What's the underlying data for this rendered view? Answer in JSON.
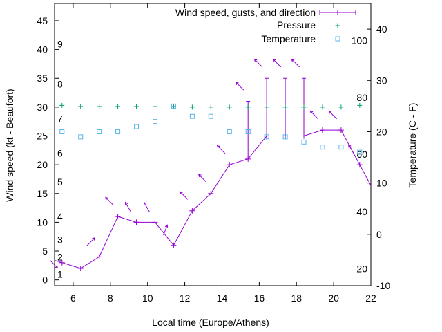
{
  "chart_data": {
    "type": "line",
    "xlabel": "Local time (Europe/Athens)",
    "ylabel": "Wind speed (kt - Beaufort)",
    "y2label": "Temperature (C - F)",
    "xlim": [
      5,
      22
    ],
    "xticks": [
      6,
      8,
      10,
      12,
      14,
      16,
      18,
      20,
      22
    ],
    "ylim": [
      -1,
      48
    ],
    "yticks": [
      0,
      5,
      10,
      15,
      20,
      25,
      30,
      35,
      40,
      45
    ],
    "y2lim": [
      -10,
      45
    ],
    "y2ticks": [
      -10,
      0,
      10,
      20,
      30,
      40
    ],
    "beaufort_labels": [
      {
        "label": "1",
        "kt": 1
      },
      {
        "label": "2",
        "kt": 4
      },
      {
        "label": "3",
        "kt": 7
      },
      {
        "label": "4",
        "kt": 11
      },
      {
        "label": "5",
        "kt": 17
      },
      {
        "label": "6",
        "kt": 22
      },
      {
        "label": "7",
        "kt": 28
      },
      {
        "label": "8",
        "kt": 34
      },
      {
        "label": "9",
        "kt": 41
      }
    ],
    "fahrenheit_labels": [
      {
        "label": "20",
        "c": -6.7
      },
      {
        "label": "40",
        "c": 4.4
      },
      {
        "label": "60",
        "c": 15.6
      },
      {
        "label": "80",
        "c": 26.7
      },
      {
        "label": "100",
        "c": 37.8
      }
    ],
    "legend_position": "top-right",
    "series": [
      {
        "name": "Wind speed, gusts, and direction",
        "color": "#9400d3",
        "x": [
          5.4,
          6.4,
          7.4,
          8.4,
          9.4,
          10.4,
          11.4,
          12.4,
          13.4,
          14.4,
          15.4,
          16.4,
          17.4,
          18.4,
          19.4,
          20.4,
          21.4
        ],
        "values": [
          3,
          2,
          4,
          11,
          10,
          10,
          6,
          12,
          15,
          20,
          21,
          25,
          25,
          25,
          26,
          26,
          20
        ],
        "gusts": [
          null,
          null,
          null,
          null,
          null,
          null,
          null,
          null,
          null,
          null,
          31,
          35,
          35,
          35,
          null,
          null,
          null
        ],
        "direction_deg": [
          135,
          null,
          45,
          315,
          330,
          330,
          20,
          315,
          315,
          315,
          315,
          315,
          315,
          315,
          315,
          315,
          330
        ]
      },
      {
        "name": "Pressure",
        "color": "#009e73",
        "x": [
          5.4,
          6.4,
          7.4,
          8.4,
          9.4,
          10.4,
          11.4,
          12.4,
          13.4,
          14.4,
          15.4,
          16.4,
          17.4,
          18.4,
          19.4,
          20.4,
          21.4
        ],
        "values": [
          30.3,
          30.1,
          30.1,
          30.1,
          30.1,
          30.1,
          30.1,
          30.0,
          30.0,
          30.0,
          30.0,
          30.0,
          30.0,
          30.0,
          30.0,
          30.0,
          30.3
        ]
      },
      {
        "name": "Temperature",
        "color": "#56b4e9",
        "axis": "y2",
        "x": [
          5.4,
          6.4,
          7.4,
          8.4,
          9.4,
          10.4,
          11.4,
          12.4,
          13.4,
          14.4,
          15.4,
          16.4,
          17.4,
          18.4,
          19.4,
          20.4,
          21.4
        ],
        "values": [
          20,
          19,
          20,
          20,
          21,
          22,
          25,
          23,
          23,
          20,
          20,
          19,
          19,
          18,
          17,
          17,
          16
        ]
      }
    ]
  }
}
